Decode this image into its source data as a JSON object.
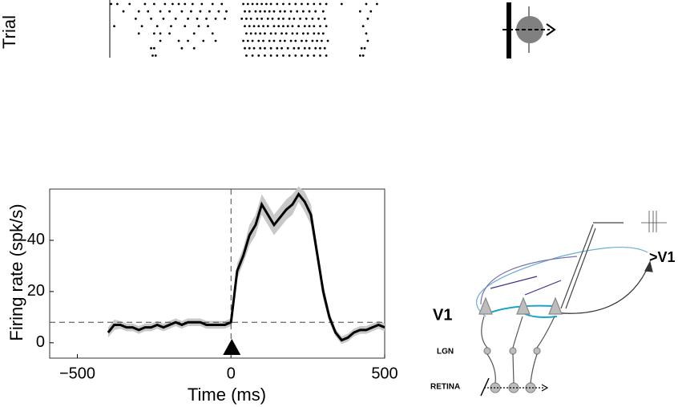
{
  "chart_data": [
    {
      "type": "raster",
      "ylabel": "Trial",
      "xlim": [
        -590,
        500
      ],
      "trials": [
        [
          -390,
          -370,
          -330,
          -280,
          -250,
          -215,
          -190,
          -170,
          -150,
          -125,
          -95,
          -60,
          -30,
          40,
          55,
          70,
          85,
          100,
          115,
          130,
          150,
          170,
          190,
          210,
          230,
          250,
          270,
          290,
          310,
          360,
          440,
          475
        ],
        [
          -350,
          -300,
          -270,
          -230,
          -200,
          -160,
          -130,
          -100,
          -70,
          -40,
          -15,
          45,
          60,
          80,
          95,
          110,
          125,
          140,
          160,
          175,
          195,
          215,
          235,
          255,
          275,
          300,
          420,
          455
        ],
        [
          -310,
          -260,
          -220,
          -180,
          -140,
          -110,
          -80,
          -50,
          -20,
          35,
          50,
          65,
          85,
          100,
          120,
          135,
          155,
          170,
          190,
          205,
          225,
          245,
          265,
          285,
          305,
          445
        ],
        [
          -380,
          -290,
          -240,
          -195,
          -150,
          -105,
          -75,
          45,
          60,
          75,
          90,
          105,
          120,
          140,
          155,
          170,
          185,
          200,
          220,
          240,
          255,
          270,
          290,
          310,
          430
        ],
        [
          -300,
          -250,
          -230,
          -200,
          -120,
          -60,
          50,
          65,
          80,
          95,
          110,
          130,
          145,
          165,
          180,
          200,
          215,
          235,
          250,
          270,
          285,
          300,
          440
        ],
        [
          -230,
          -170,
          -140,
          -90,
          -50,
          40,
          55,
          70,
          90,
          105,
          125,
          140,
          160,
          175,
          195,
          210,
          230,
          245,
          265,
          280,
          295,
          315,
          445
        ],
        [
          -260,
          -250,
          -160,
          -120,
          45,
          60,
          75,
          95,
          110,
          130,
          150,
          165,
          185,
          205,
          220,
          240,
          255,
          275,
          290,
          305,
          425,
          435
        ],
        [
          -255,
          -245,
          50,
          70,
          90,
          110,
          130,
          150,
          170,
          190,
          210,
          230,
          250,
          270,
          290,
          310,
          420,
          430
        ]
      ]
    },
    {
      "type": "line",
      "xlabel": "Time (ms)",
      "ylabel": "Firing rate (spk/s)",
      "xlim": [
        -590,
        500
      ],
      "ylim": [
        -6,
        60
      ],
      "xticks": [
        {
          "value": -500,
          "label": "−500"
        },
        0,
        500
      ],
      "yticks": [
        0,
        20,
        40
      ],
      "baseline": 8,
      "event": 0,
      "color": "#000000",
      "band_color": "#c8c8c8",
      "x": [
        -400,
        -380,
        -360,
        -340,
        -320,
        -300,
        -280,
        -260,
        -240,
        -220,
        -200,
        -180,
        -160,
        -140,
        -120,
        -100,
        -80,
        -60,
        -40,
        -20,
        0,
        20,
        40,
        60,
        80,
        100,
        120,
        140,
        160,
        180,
        200,
        220,
        240,
        260,
        280,
        300,
        320,
        340,
        360,
        380,
        400,
        420,
        440,
        460,
        480,
        500
      ],
      "values": [
        4,
        7,
        7,
        6,
        6,
        5,
        6,
        6,
        7,
        6,
        7,
        8,
        7,
        8,
        8,
        8,
        7,
        7,
        7,
        7,
        8,
        28,
        34,
        42,
        46,
        54,
        50,
        46,
        49,
        52,
        54,
        58,
        55,
        50,
        35,
        20,
        10,
        4,
        1,
        2,
        4,
        5,
        5,
        6,
        7,
        6
      ],
      "error": [
        2,
        2,
        1.5,
        1.5,
        1.5,
        1.5,
        1.5,
        1.5,
        1.5,
        1.5,
        1.5,
        1.5,
        1.5,
        1.5,
        1.5,
        1.5,
        1.5,
        1.5,
        1.5,
        1.5,
        1.5,
        3,
        3,
        4,
        4,
        4,
        4,
        4,
        4,
        4,
        4,
        3,
        4,
        4,
        3,
        3,
        2,
        1.5,
        1.5,
        1.5,
        1.5,
        1.5,
        1.5,
        1.5,
        1.5,
        1.5
      ]
    }
  ],
  "diagram": {
    "labels": [
      ">V1",
      "V1",
      "LGN",
      "RETINA"
    ]
  }
}
